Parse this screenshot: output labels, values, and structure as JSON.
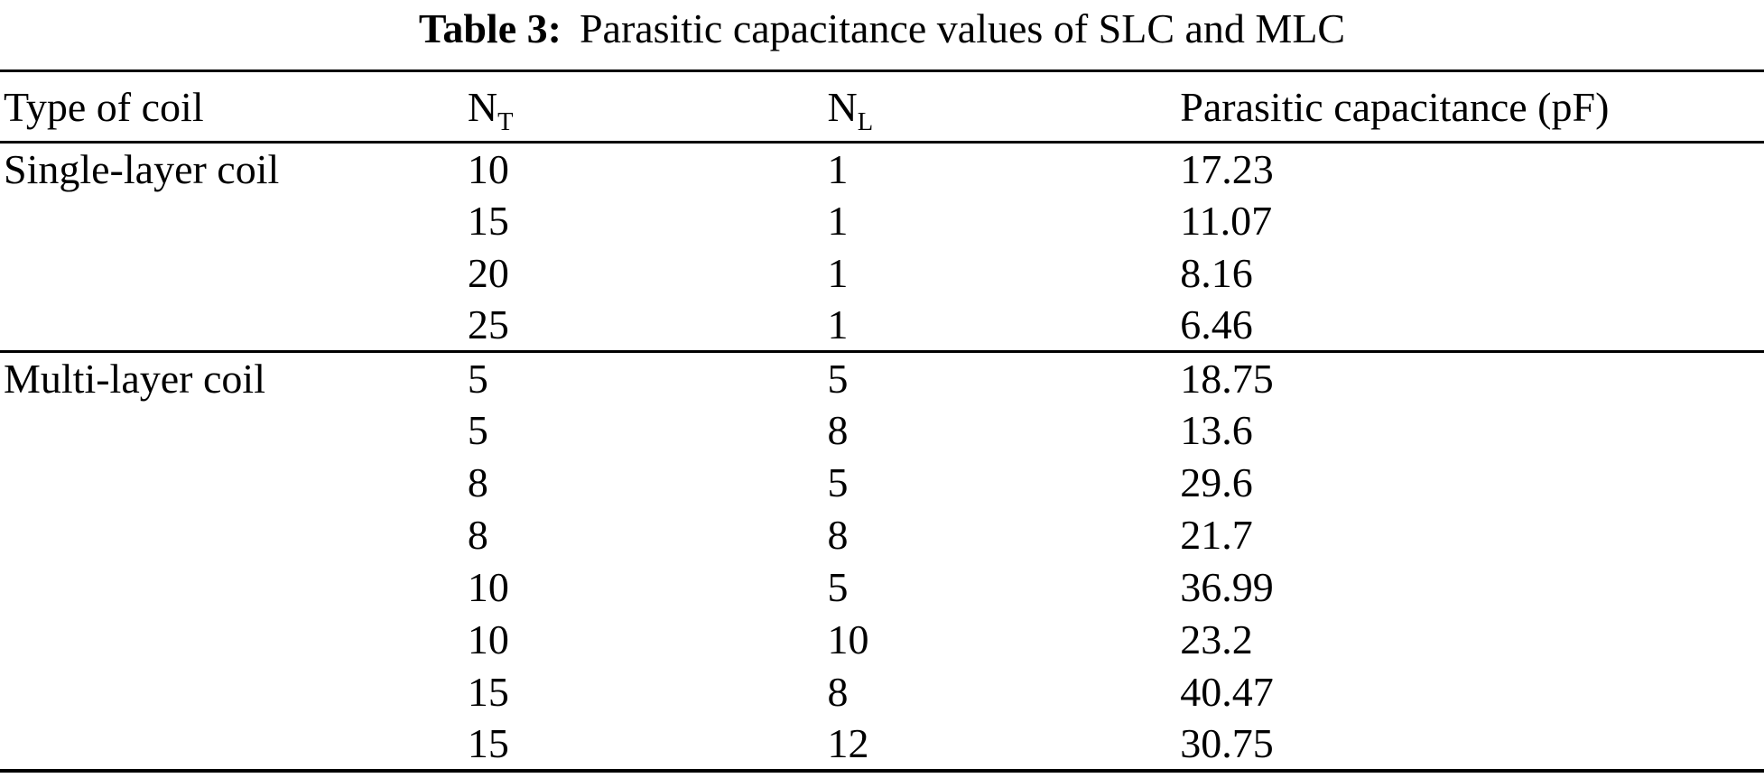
{
  "caption": {
    "label": "Table 3:",
    "text": "Parasitic capacitance values of SLC and MLC"
  },
  "header": {
    "col1": "Type of coil",
    "col2_base": "N",
    "col2_sub": "T",
    "col3_base": "N",
    "col3_sub": "L",
    "col4": "Parasitic capacitance (pF)"
  },
  "rows": [
    {
      "type": "Single-layer coil",
      "nt": "10",
      "nl": "1",
      "cap": "17.23"
    },
    {
      "type": "",
      "nt": "15",
      "nl": "1",
      "cap": "11.07"
    },
    {
      "type": "",
      "nt": "20",
      "nl": "1",
      "cap": "8.16"
    },
    {
      "type": "",
      "nt": "25",
      "nl": "1",
      "cap": "6.46"
    },
    {
      "type": "Multi-layer coil",
      "nt": "5",
      "nl": "5",
      "cap": "18.75"
    },
    {
      "type": "",
      "nt": "5",
      "nl": "8",
      "cap": "13.6"
    },
    {
      "type": "",
      "nt": "8",
      "nl": "5",
      "cap": "29.6"
    },
    {
      "type": "",
      "nt": "8",
      "nl": "8",
      "cap": "21.7"
    },
    {
      "type": "",
      "nt": "10",
      "nl": "5",
      "cap": "36.99"
    },
    {
      "type": "",
      "nt": "10",
      "nl": "10",
      "cap": "23.2"
    },
    {
      "type": "",
      "nt": "15",
      "nl": "8",
      "cap": "40.47"
    },
    {
      "type": "",
      "nt": "15",
      "nl": "12",
      "cap": "30.75"
    }
  ],
  "chart_data": {
    "type": "table",
    "title": "Table 3: Parasitic capacitance values of SLC and MLC",
    "columns": [
      "Type of coil",
      "N_T",
      "N_L",
      "Parasitic capacitance (pF)"
    ],
    "rows": [
      [
        "Single-layer coil",
        10,
        1,
        17.23
      ],
      [
        "Single-layer coil",
        15,
        1,
        11.07
      ],
      [
        "Single-layer coil",
        20,
        1,
        8.16
      ],
      [
        "Single-layer coil",
        25,
        1,
        6.46
      ],
      [
        "Multi-layer coil",
        5,
        5,
        18.75
      ],
      [
        "Multi-layer coil",
        5,
        8,
        13.6
      ],
      [
        "Multi-layer coil",
        8,
        5,
        29.6
      ],
      [
        "Multi-layer coil",
        8,
        8,
        21.7
      ],
      [
        "Multi-layer coil",
        10,
        5,
        36.99
      ],
      [
        "Multi-layer coil",
        10,
        10,
        23.2
      ],
      [
        "Multi-layer coil",
        15,
        8,
        40.47
      ],
      [
        "Multi-layer coil",
        15,
        12,
        30.75
      ]
    ],
    "colors": {
      "text": "#000000",
      "background": "#ffffff",
      "rules": "#000000"
    }
  }
}
